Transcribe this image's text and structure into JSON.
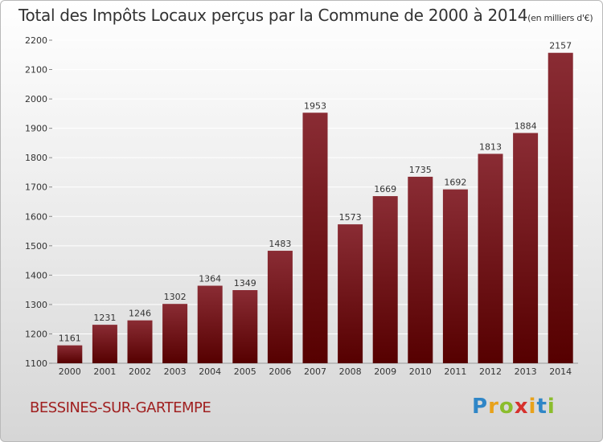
{
  "title": "Total des Impôts Locaux perçus par la Commune de 2000 à 2014",
  "title_unit": "(en milliers d'€)",
  "commune": "BESSINES-SUR-GARTEMPE",
  "logo_text": "Proxiti",
  "logo_letters": [
    {
      "char": "P",
      "color": "#2f86c7"
    },
    {
      "char": "r",
      "color": "#e8a21b"
    },
    {
      "char": "o",
      "color": "#8bbd2d"
    },
    {
      "char": "x",
      "color": "#d6312d"
    },
    {
      "char": "i",
      "color": "#e8a21b"
    },
    {
      "char": "t",
      "color": "#2f86c7"
    },
    {
      "char": "i",
      "color": "#8bbd2d"
    }
  ],
  "colors": {
    "bar_top": "#8a2c34",
    "bar_bottom": "#560000",
    "grid": "#ffffff"
  },
  "chart_data": {
    "type": "bar",
    "title": "Total des Impôts Locaux perçus par la Commune de 2000 à 2014",
    "xlabel": "",
    "ylabel": "",
    "ylim": [
      1100,
      2200
    ],
    "yticks": [
      1100,
      1200,
      1300,
      1400,
      1500,
      1600,
      1700,
      1800,
      1900,
      2000,
      2100,
      2200
    ],
    "grid": true,
    "categories": [
      "2000",
      "2001",
      "2002",
      "2003",
      "2004",
      "2005",
      "2006",
      "2007",
      "2008",
      "2009",
      "2010",
      "2011",
      "2012",
      "2013",
      "2014"
    ],
    "values": [
      1161,
      1231,
      1246,
      1302,
      1364,
      1349,
      1483,
      1953,
      1573,
      1669,
      1735,
      1692,
      1813,
      1884,
      2157
    ]
  }
}
